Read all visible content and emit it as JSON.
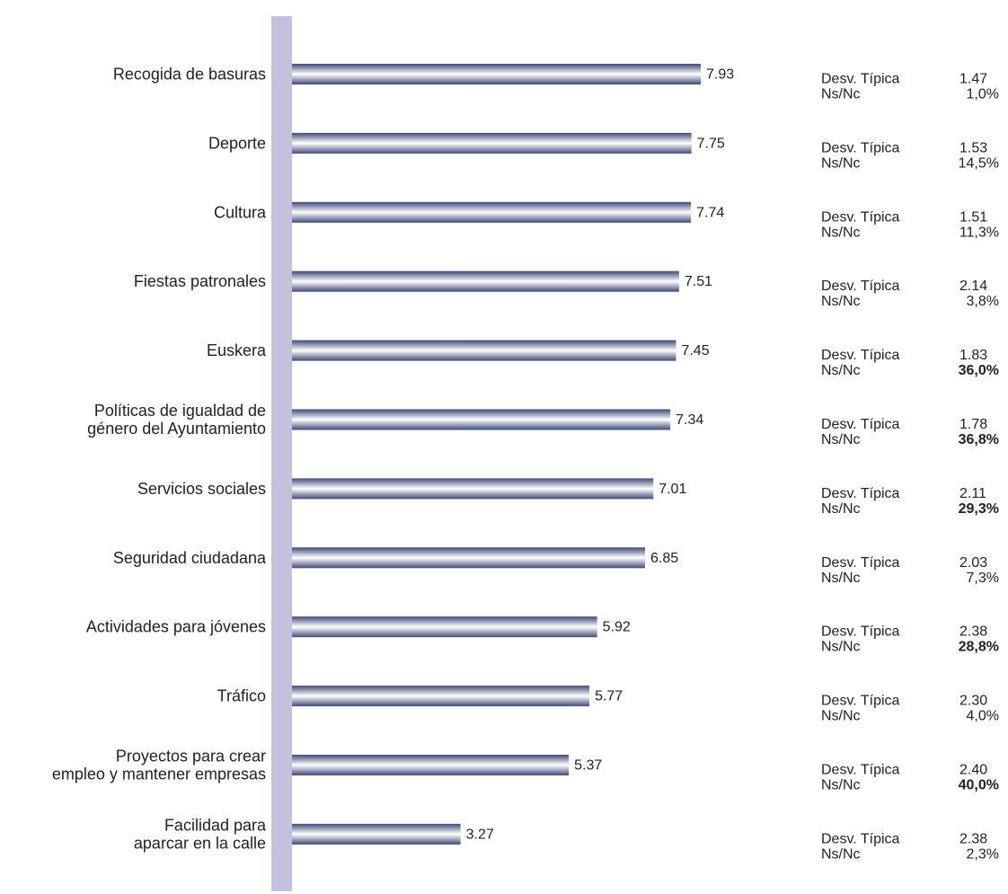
{
  "colors": {
    "axis_band": "#c4c0de",
    "bar_dark": "#3e4a78",
    "bar_light": "#ffffff"
  },
  "stats_labels": {
    "sd": "Desv. Típica",
    "nsnc": "Ns/Nc"
  },
  "chart_data": {
    "type": "bar",
    "orientation": "horizontal",
    "title": "",
    "xlabel": "",
    "ylabel": "",
    "xlim": [
      0,
      10
    ],
    "grid": false,
    "legend": "none",
    "categories": [
      "Recogida de basuras",
      "Deporte",
      "Cultura",
      "Fiestas patronales",
      "Euskera",
      "Políticas de igualdad de\ngénero del Ayuntamiento",
      "Servicios sociales",
      "Seguridad ciudadana",
      "Actividades para jóvenes",
      "Tráfico",
      "Proyectos para crear\nempleo y mantener empresas",
      "Facilidad para\naparcar en la calle"
    ],
    "values": [
      7.93,
      7.75,
      7.74,
      7.51,
      7.45,
      7.34,
      7.01,
      6.85,
      5.92,
      5.77,
      5.37,
      3.27
    ],
    "value_labels": [
      "7.93",
      "7.75",
      "7.74",
      "7.51",
      "7.45",
      "7.34",
      "7.01",
      "6.85",
      "5.92",
      "5.77",
      "5.37",
      "3.27"
    ],
    "std_dev": [
      "1.47",
      "1.53",
      "1.51",
      "2.14",
      "1.83",
      "1.78",
      "2.11",
      "2.03",
      "2.38",
      "2.30",
      "2.40",
      "2.38"
    ],
    "ns_nc": [
      "1,0%",
      "14,5%",
      "11,3%",
      "3,8%",
      "36,0%",
      "36,8%",
      "29,3%",
      "7,3%",
      "28,8%",
      "4,0%",
      "40,0%",
      "2,3%"
    ],
    "ns_nc_bold": [
      false,
      false,
      false,
      false,
      true,
      true,
      true,
      false,
      true,
      false,
      true,
      false
    ]
  }
}
